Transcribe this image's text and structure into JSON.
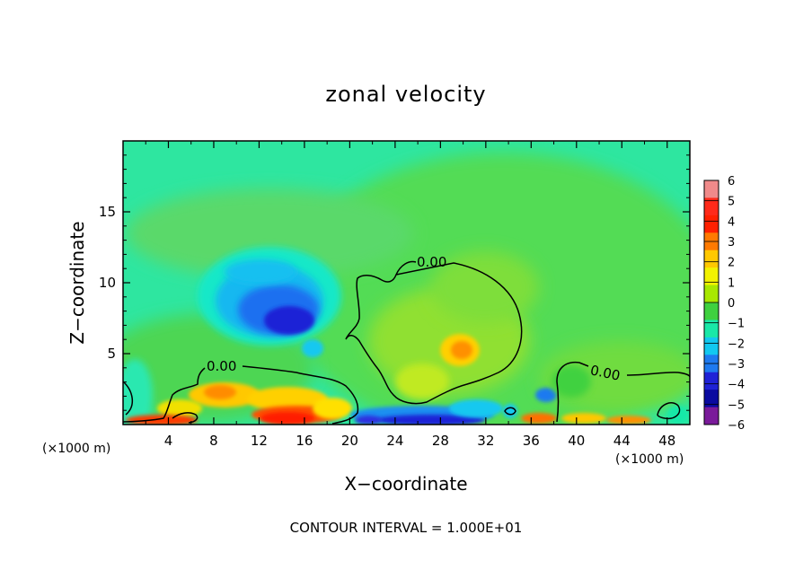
{
  "chart_data": {
    "type": "heatmap",
    "title": "zonal velocity",
    "xlabel": "X−coordinate",
    "ylabel": "Z−coordinate",
    "x_unit": "(×1000 m)",
    "xlim": [
      0,
      50
    ],
    "ylim": [
      0,
      20
    ],
    "x_ticks": [
      4,
      8,
      12,
      16,
      20,
      24,
      28,
      32,
      36,
      40,
      44,
      48
    ],
    "x_tick_labels": [
      "4",
      "8",
      "12",
      "16",
      "20",
      "24",
      "28",
      "32",
      "36",
      "40",
      "44",
      "48"
    ],
    "y_ticks": [
      5,
      10,
      15
    ],
    "y_tick_labels": [
      "5",
      "10",
      "15"
    ],
    "colorbar": {
      "levels": [
        6,
        5,
        4,
        3,
        2,
        1,
        0,
        -1,
        -2,
        -3,
        -4,
        -5,
        -6
      ],
      "labels": [
        "6",
        "5",
        "4",
        "3",
        "2",
        "1",
        "0",
        "−1",
        "−2",
        "−3",
        "−4",
        "−5",
        "−6"
      ],
      "colors": [
        "#f08a8a",
        "#ff2a1a",
        "#ff2000",
        "#ff7a00",
        "#ffc800",
        "#f2f200",
        "#a8e800",
        "#3fd13f",
        "#19e8a8",
        "#12c8f0",
        "#1e7af0",
        "#1f22d6",
        "#0a0aa0",
        "#7a1a9a"
      ]
    },
    "contour_label": "0.00",
    "contour_interval_text": "CONTOUR INTERVAL = 1.000E+01",
    "features": [
      {
        "x": 14,
        "z": 7,
        "value": -5
      },
      {
        "x": 12,
        "z": 8.5,
        "value": -3
      },
      {
        "x": 29.5,
        "z": 5.2,
        "value": 3
      },
      {
        "x": 10,
        "z": 2,
        "value": 2.5
      },
      {
        "x": 16,
        "z": 0.8,
        "value": 4
      },
      {
        "x": 28,
        "z": 0.3,
        "value": -5
      },
      {
        "x": 36,
        "z": 2,
        "value": -2
      }
    ]
  }
}
